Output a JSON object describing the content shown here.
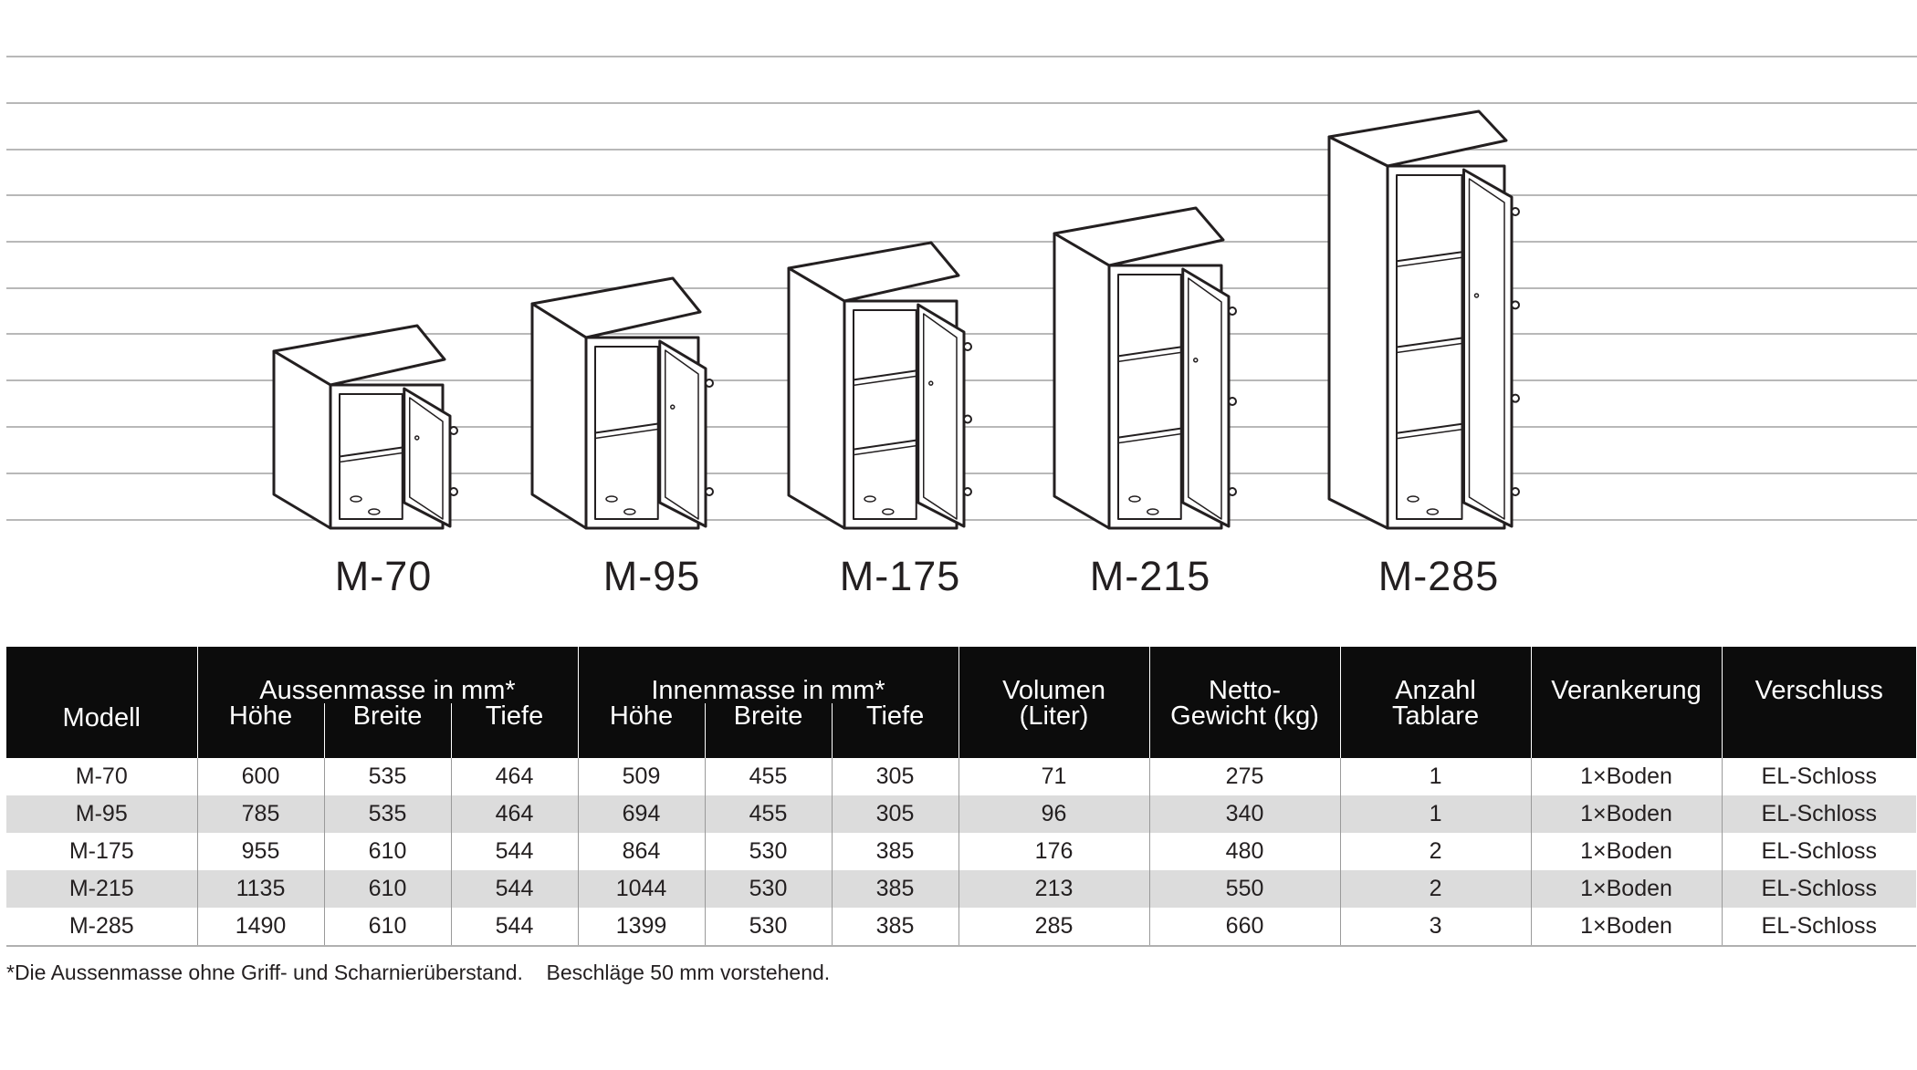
{
  "models": [
    {
      "label": "M-70"
    },
    {
      "label": "M-95"
    },
    {
      "label": "M-175"
    },
    {
      "label": "M-215"
    },
    {
      "label": "M-285"
    }
  ],
  "table": {
    "header": {
      "modell": "Modell",
      "aussen_group": "Aussenmasse in mm*",
      "innen_group": "Innenmasse in mm*",
      "hoehe": "Höhe",
      "breite": "Breite",
      "tiefe": "Tiefe",
      "volumen_1": "Volumen",
      "volumen_2": "(Liter)",
      "netto_1": "Netto-",
      "netto_2": "Gewicht (kg)",
      "anzahl_1": "Anzahl",
      "anzahl_2": "Tablare",
      "verankerung": "Verankerung",
      "verschluss": "Verschluss"
    },
    "rows": [
      [
        "M-70",
        "600",
        "535",
        "464",
        "509",
        "455",
        "305",
        "71",
        "275",
        "1",
        "1×Boden",
        "EL-Schloss"
      ],
      [
        "M-95",
        "785",
        "535",
        "464",
        "694",
        "455",
        "305",
        "96",
        "340",
        "1",
        "1×Boden",
        "EL-Schloss"
      ],
      [
        "M-175",
        "955",
        "610",
        "544",
        "864",
        "530",
        "385",
        "176",
        "480",
        "2",
        "1×Boden",
        "EL-Schloss"
      ],
      [
        "M-215",
        "1135",
        "610",
        "544",
        "1044",
        "530",
        "385",
        "213",
        "550",
        "2",
        "1×Boden",
        "EL-Schloss"
      ],
      [
        "M-285",
        "1490",
        "610",
        "544",
        "1399",
        "530",
        "385",
        "285",
        "660",
        "3",
        "1×Boden",
        "EL-Schloss"
      ]
    ]
  },
  "footnote": "*Die Aussenmasse ohne Griff- und Scharnierüberstand.    Beschläge 50 mm vorstehend.",
  "colors": {
    "ink": "#231f20",
    "header_bg": "#0c0c0c",
    "stripe": "#dcdcdc",
    "gridline": "#b8b8b8"
  }
}
